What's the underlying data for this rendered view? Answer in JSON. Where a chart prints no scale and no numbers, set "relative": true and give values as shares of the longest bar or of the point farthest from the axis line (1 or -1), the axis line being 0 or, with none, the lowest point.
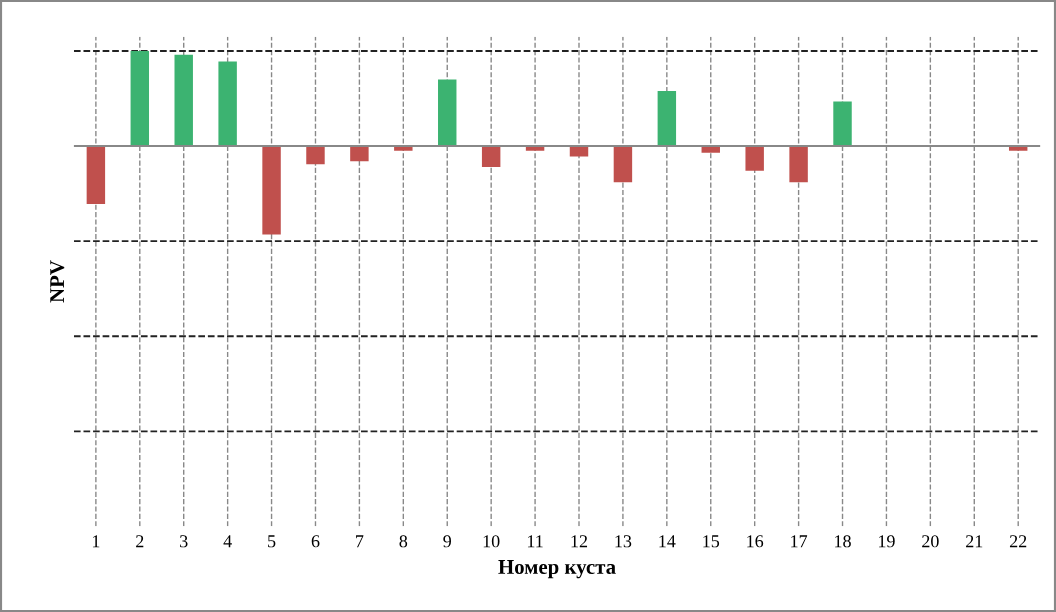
{
  "chart_data": {
    "type": "bar",
    "relative": true,
    "xlabel": "Номер куста",
    "ylabel": "NPV",
    "categories": [
      "1",
      "2",
      "3",
      "4",
      "5",
      "6",
      "7",
      "8",
      "9",
      "10",
      "11",
      "12",
      "13",
      "14",
      "15",
      "16",
      "17",
      "18",
      "19",
      "20",
      "21",
      "22"
    ],
    "values": [
      -0.61,
      1,
      0.96,
      0.89,
      -0.93,
      -0.19,
      -0.16,
      -0.05,
      0.7,
      -0.22,
      -0.05,
      -0.11,
      -0.38,
      0.58,
      -0.07,
      -0.26,
      -0.38,
      0.47,
      0,
      0,
      0,
      -0.05
    ],
    "colors": [
      "#c0504d",
      "#3cb371",
      "#3cb371",
      "#3cb371",
      "#c0504d",
      "#c0504d",
      "#c0504d",
      "#c0504d",
      "#3cb371",
      "#c0504d",
      "#c0504d",
      "#c0504d",
      "#c0504d",
      "#3cb371",
      "#c0504d",
      "#c0504d",
      "#c0504d",
      "#3cb371",
      "#c0504d",
      "#c0504d",
      "#c0504d",
      "#c0504d"
    ],
    "grid": true,
    "ref_lines": [
      {
        "axis": "y",
        "value": 0,
        "color": "#888888"
      }
    ]
  }
}
